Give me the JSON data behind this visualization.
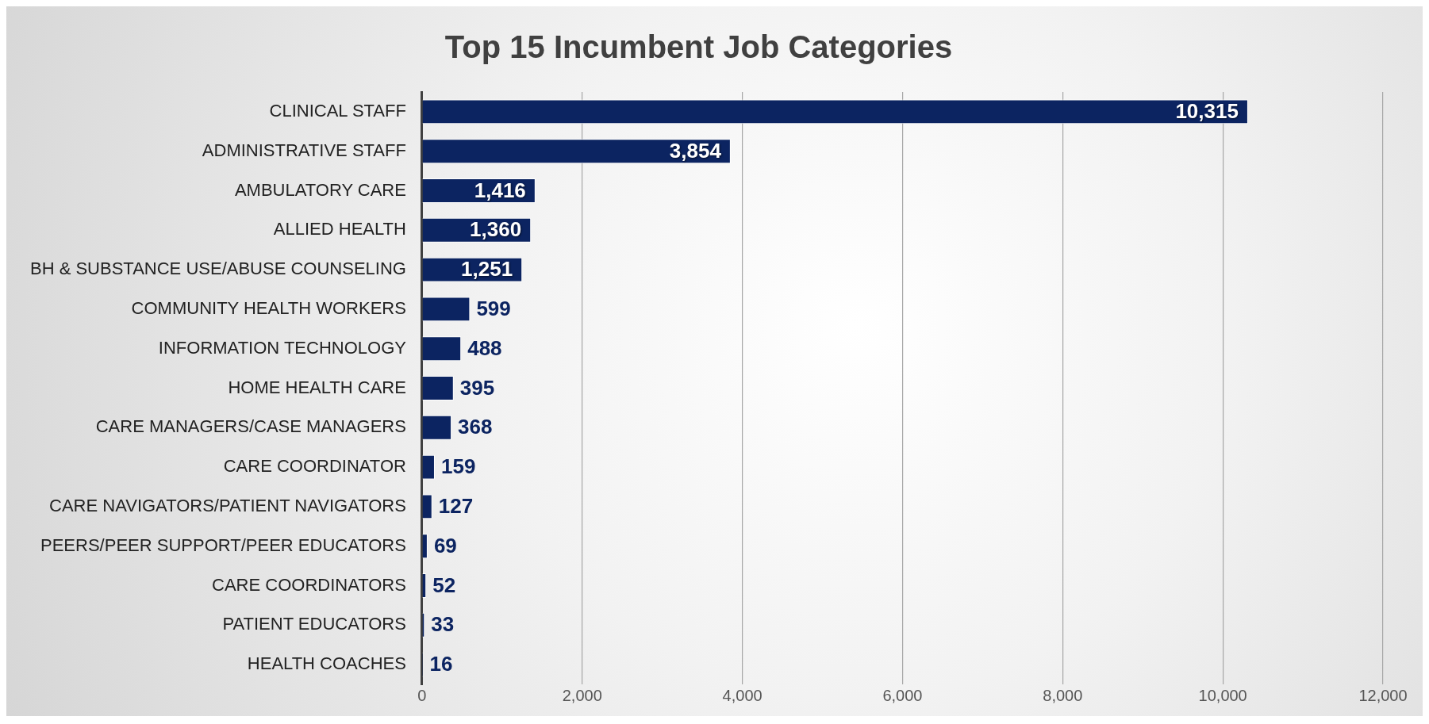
{
  "chart_data": {
    "type": "bar",
    "orientation": "horizontal",
    "title": "Top 15 Incumbent Job Categories",
    "categories": [
      "CLINICAL STAFF",
      "ADMINISTRATIVE STAFF",
      "AMBULATORY CARE",
      "ALLIED HEALTH",
      "BH & SUBSTANCE USE/ABUSE COUNSELING",
      "COMMUNITY HEALTH WORKERS",
      "INFORMATION TECHNOLOGY",
      "HOME HEALTH CARE",
      "CARE MANAGERS/CASE MANAGERS",
      "CARE COORDINATOR",
      "CARE NAVIGATORS/PATIENT NAVIGATORS",
      "PEERS/PEER SUPPORT/PEER EDUCATORS",
      "CARE COORDINATORS",
      "PATIENT EDUCATORS",
      "HEALTH COACHES"
    ],
    "values": [
      10315,
      3854,
      1416,
      1360,
      1251,
      599,
      488,
      395,
      368,
      159,
      127,
      69,
      52,
      33,
      16
    ],
    "color": "#0c2461",
    "xlim": [
      0,
      12000
    ],
    "xticks": [
      {
        "value": 0,
        "label": "0"
      },
      {
        "value": 2000,
        "label": "2,000"
      },
      {
        "value": 4000,
        "label": "4,000"
      },
      {
        "value": 6000,
        "label": "6,000"
      },
      {
        "value": 8000,
        "label": "8,000"
      },
      {
        "value": 10000,
        "label": "10,000"
      },
      {
        "value": 12000,
        "label": "12,000"
      }
    ],
    "value_labels": [
      "10,315",
      "3,854",
      "1,416",
      "1,360",
      "1,251",
      "599",
      "488",
      "395",
      "368",
      "159",
      "127",
      "69",
      "52",
      "33",
      "16"
    ],
    "grid": "x",
    "legend": false
  }
}
